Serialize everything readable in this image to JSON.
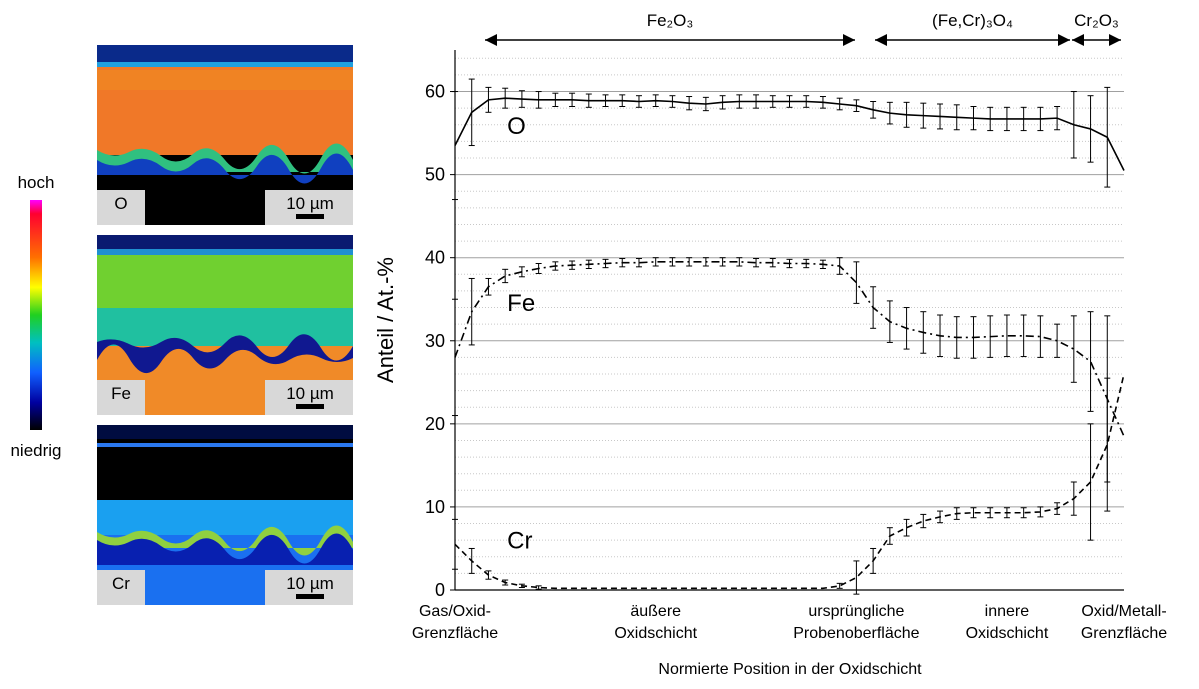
{
  "chart_data": {
    "type": "line",
    "ylabel": "Anteil / At.-%",
    "xlabel": "Normierte Position in der Oxidschicht",
    "annotations": [
      "Fe₂O₃",
      "(Fe,Cr)₃O₄",
      "Cr₂O₃"
    ],
    "categories": [
      [
        "Gas/Oxid-",
        "Grenzfläche"
      ],
      null,
      null,
      null,
      null,
      null,
      null,
      null,
      null,
      null,
      null,
      null,
      [
        "äußere",
        "Oxidschicht"
      ],
      null,
      null,
      null,
      null,
      null,
      null,
      null,
      null,
      null,
      null,
      null,
      [
        "ursprüngliche",
        "Probenoberfläche"
      ],
      null,
      null,
      null,
      null,
      null,
      null,
      null,
      null,
      [
        "innere",
        "Oxidschicht"
      ],
      null,
      null,
      null,
      null,
      null,
      null,
      [
        "Oxid/Metall-",
        "Grenzfläche"
      ]
    ],
    "series": [
      {
        "name": "O",
        "color": "#000000",
        "dash": "solid",
        "values": [
          53.5,
          57.5,
          59,
          59.2,
          59.1,
          59,
          59,
          59,
          58.9,
          58.9,
          58.9,
          58.8,
          58.9,
          58.8,
          58.6,
          58.5,
          58.7,
          58.8,
          58.8,
          58.8,
          58.8,
          58.8,
          58.7,
          58.5,
          58.3,
          57.8,
          57.4,
          57.2,
          57.1,
          57,
          56.9,
          56.8,
          56.7,
          56.7,
          56.7,
          56.7,
          56.8,
          56,
          55.5,
          54.5,
          50.5
        ],
        "errors": [
          6.5,
          4,
          1.5,
          1.2,
          1,
          1,
          0.8,
          0.8,
          0.8,
          0.7,
          0.7,
          0.7,
          0.7,
          0.7,
          0.8,
          0.8,
          0.8,
          0.8,
          0.8,
          0.7,
          0.7,
          0.7,
          0.7,
          0.7,
          0.7,
          1,
          1.3,
          1.5,
          1.5,
          1.5,
          1.5,
          1.4,
          1.4,
          1.4,
          1.4,
          1.4,
          1.4,
          4,
          4,
          6,
          null
        ]
      },
      {
        "name": "Fe",
        "color": "#000000",
        "dash": "dashdot",
        "values": [
          28,
          33.5,
          36.5,
          37.8,
          38.3,
          38.7,
          39,
          39.1,
          39.2,
          39.3,
          39.4,
          39.4,
          39.5,
          39.5,
          39.5,
          39.5,
          39.5,
          39.5,
          39.4,
          39.4,
          39.3,
          39.3,
          39.2,
          39,
          37,
          34,
          32.3,
          31.5,
          31,
          30.6,
          30.4,
          30.4,
          30.5,
          30.6,
          30.6,
          30.5,
          30,
          29,
          27.5,
          23,
          18.5
        ],
        "errors": [
          7,
          4,
          1,
          0.8,
          0.6,
          0.6,
          0.5,
          0.5,
          0.5,
          0.5,
          0.5,
          0.5,
          0.5,
          0.5,
          0.5,
          0.5,
          0.5,
          0.5,
          0.5,
          0.5,
          0.5,
          0.5,
          0.5,
          1,
          2.5,
          2.5,
          2.5,
          2.5,
          2.5,
          2.5,
          2.5,
          2.5,
          2.5,
          2.5,
          2.5,
          2.5,
          2,
          4,
          6,
          10,
          null
        ]
      },
      {
        "name": "Cr",
        "color": "#000000",
        "dash": "dashed",
        "values": [
          5.5,
          3.5,
          1.8,
          0.9,
          0.5,
          0.3,
          0.2,
          0.2,
          0.2,
          0.2,
          0.2,
          0.2,
          0.2,
          0.2,
          0.2,
          0.2,
          0.2,
          0.2,
          0.2,
          0.2,
          0.2,
          0.2,
          0.2,
          0.5,
          1.5,
          3.5,
          6.5,
          7.5,
          8.3,
          8.8,
          9.2,
          9.3,
          9.3,
          9.3,
          9.3,
          9.4,
          9.8,
          11,
          13,
          17.5,
          26
        ],
        "errors": [
          3,
          1.5,
          0.5,
          0.3,
          0.2,
          0.2,
          null,
          null,
          null,
          null,
          null,
          null,
          null,
          null,
          null,
          null,
          null,
          null,
          null,
          null,
          null,
          null,
          null,
          0.3,
          2,
          1.5,
          1,
          1,
          0.8,
          0.7,
          0.7,
          0.6,
          0.6,
          0.6,
          0.6,
          0.6,
          0.7,
          2,
          7,
          8,
          null
        ]
      }
    ],
    "ylim": [
      0,
      65
    ],
    "yticks": [
      0,
      10,
      20,
      30,
      40,
      50,
      60
    ],
    "yminorticks": [
      2,
      4,
      6,
      8,
      12,
      14,
      16,
      18,
      22,
      24,
      26,
      28,
      32,
      34,
      36,
      38,
      42,
      44,
      46,
      48,
      52,
      54,
      56,
      58,
      62,
      64
    ],
    "grid": true
  },
  "colorbar": {
    "top": "hoch",
    "bottom": "niedrig"
  },
  "maps": [
    {
      "label": "O",
      "scale": "10 µm"
    },
    {
      "label": "Fe",
      "scale": "10 µm"
    },
    {
      "label": "Cr",
      "scale": "10 µm"
    }
  ]
}
